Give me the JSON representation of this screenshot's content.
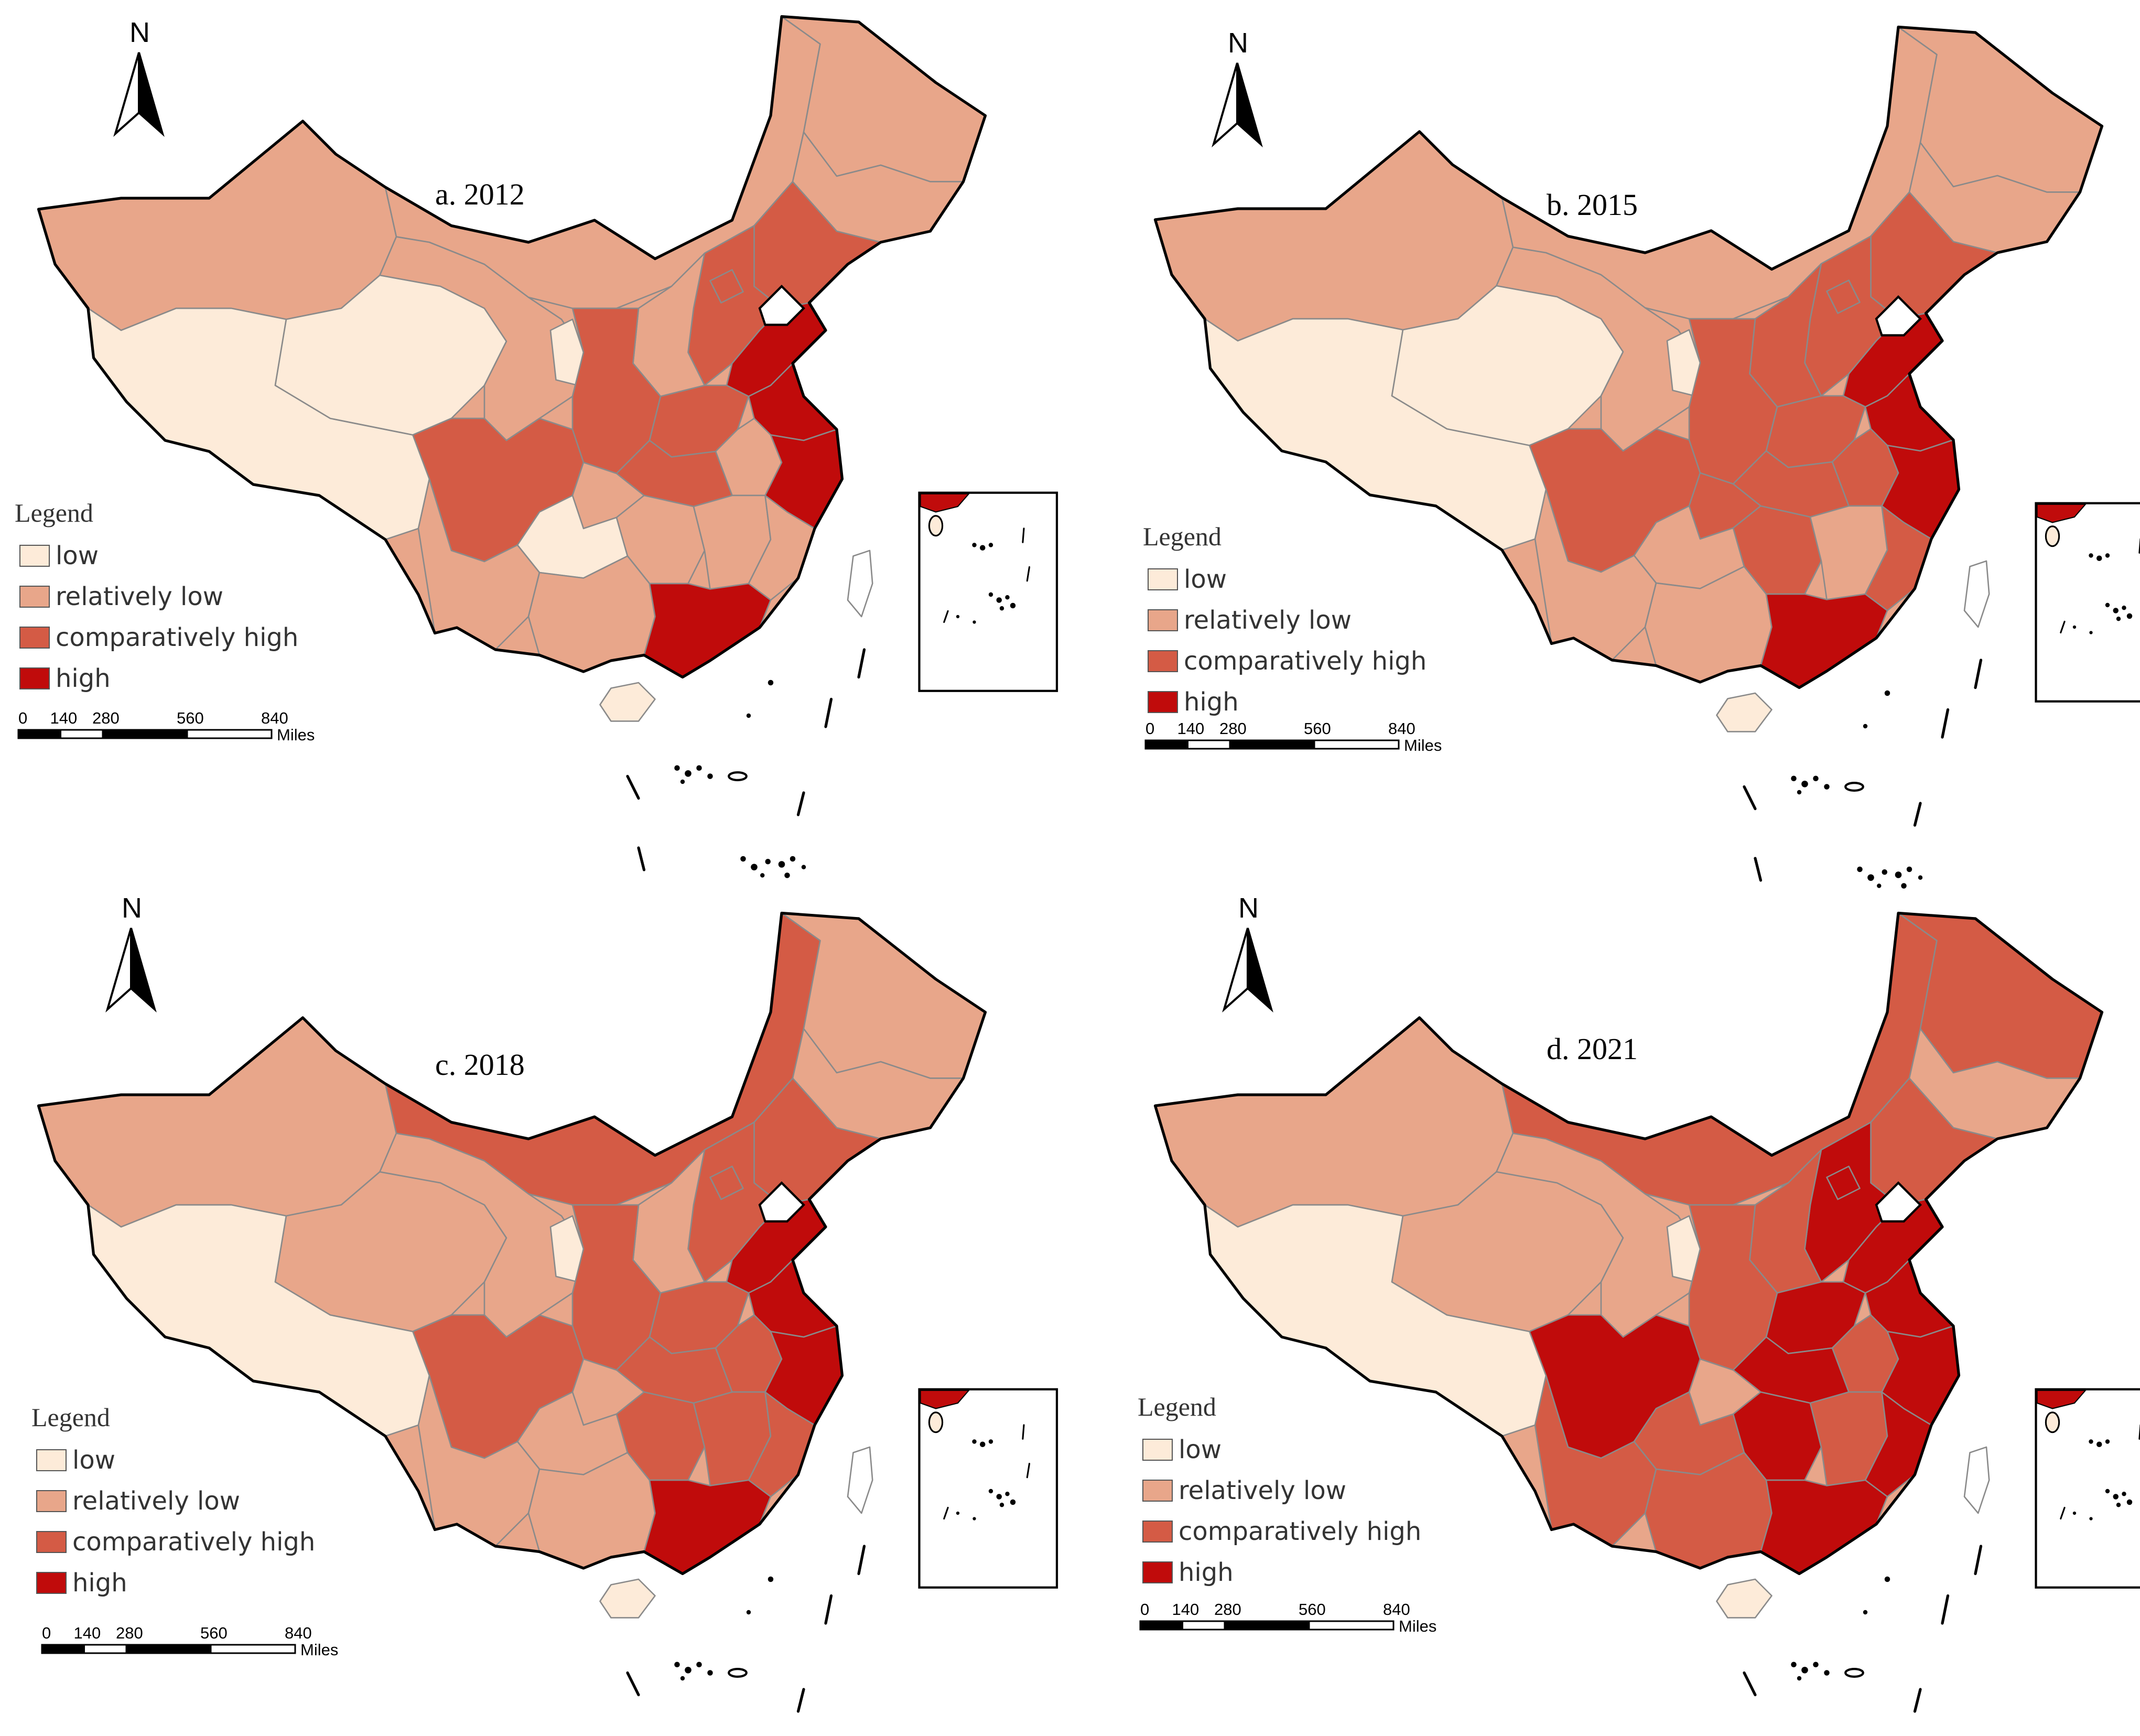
{
  "colors": {
    "low": "#fdebd9",
    "relatively_low": "#e8a68a",
    "comparatively_high": "#d45b45",
    "high": "#c00b0b",
    "outline": "#000000"
  },
  "legend": {
    "title": "Legend",
    "items": [
      {
        "key": "low",
        "label": "low"
      },
      {
        "key": "relatively_low",
        "label": "relatively low"
      },
      {
        "key": "comparatively_high",
        "label": "comparatively high"
      },
      {
        "key": "high",
        "label": "high"
      }
    ]
  },
  "north_arrow": {
    "label": "N",
    "icon": "north-arrow-icon"
  },
  "scale_bar": {
    "ticks": [
      "0",
      "140",
      "280",
      "560",
      "840"
    ],
    "unit": "Miles"
  },
  "panels": [
    {
      "id": "a",
      "title": "a. 2012",
      "regions": {
        "xinjiang": "relatively_low",
        "tibet": "low",
        "qinghai": "low",
        "gansu": "relatively_low",
        "inner_mongolia": "relatively_low",
        "ningxia": "low",
        "shaanxi": "comparatively_high",
        "shanxi": "relatively_low",
        "heilongjiang": "relatively_low",
        "jilin": "relatively_low",
        "liaoning": "comparatively_high",
        "beijing": "comparatively_high",
        "hebei": "comparatively_high",
        "shandong": "high",
        "henan": "comparatively_high",
        "jiangsu": "high",
        "anhui": "relatively_low",
        "zhejiang": "high",
        "hubei": "comparatively_high",
        "sichuan": "comparatively_high",
        "chongqing": "relatively_low",
        "yunnan": "relatively_low",
        "guizhou": "low",
        "hunan": "relatively_low",
        "jiangxi": "relatively_low",
        "fujian": "relatively_low",
        "guangxi": "relatively_low",
        "guangdong": "high",
        "hainan": "low",
        "taiwan": "none"
      }
    },
    {
      "id": "b",
      "title": "b. 2015",
      "regions": {
        "xinjiang": "relatively_low",
        "tibet": "low",
        "qinghai": "low",
        "gansu": "relatively_low",
        "inner_mongolia": "relatively_low",
        "ningxia": "low",
        "shaanxi": "comparatively_high",
        "shanxi": "comparatively_high",
        "heilongjiang": "relatively_low",
        "jilin": "relatively_low",
        "liaoning": "comparatively_high",
        "beijing": "comparatively_high",
        "hebei": "comparatively_high",
        "shandong": "high",
        "henan": "comparatively_high",
        "jiangsu": "high",
        "anhui": "comparatively_high",
        "zhejiang": "high",
        "hubei": "comparatively_high",
        "sichuan": "comparatively_high",
        "chongqing": "comparatively_high",
        "yunnan": "relatively_low",
        "guizhou": "relatively_low",
        "hunan": "comparatively_high",
        "jiangxi": "relatively_low",
        "fujian": "comparatively_high",
        "guangxi": "relatively_low",
        "guangdong": "high",
        "hainan": "low",
        "taiwan": "none"
      }
    },
    {
      "id": "c",
      "title": "c. 2018",
      "regions": {
        "xinjiang": "relatively_low",
        "tibet": "low",
        "qinghai": "relatively_low",
        "gansu": "relatively_low",
        "inner_mongolia": "comparatively_high",
        "ningxia": "low",
        "shaanxi": "comparatively_high",
        "shanxi": "relatively_low",
        "heilongjiang": "relatively_low",
        "jilin": "relatively_low",
        "liaoning": "comparatively_high",
        "beijing": "comparatively_high",
        "hebei": "comparatively_high",
        "shandong": "high",
        "henan": "comparatively_high",
        "jiangsu": "high",
        "anhui": "comparatively_high",
        "zhejiang": "high",
        "hubei": "comparatively_high",
        "sichuan": "comparatively_high",
        "chongqing": "relatively_low",
        "yunnan": "relatively_low",
        "guizhou": "relatively_low",
        "hunan": "comparatively_high",
        "jiangxi": "comparatively_high",
        "fujian": "comparatively_high",
        "guangxi": "relatively_low",
        "guangdong": "high",
        "hainan": "low",
        "taiwan": "none"
      }
    },
    {
      "id": "d",
      "title": "d. 2021",
      "regions": {
        "xinjiang": "relatively_low",
        "tibet": "low",
        "qinghai": "relatively_low",
        "gansu": "relatively_low",
        "inner_mongolia": "comparatively_high",
        "ningxia": "low",
        "shaanxi": "comparatively_high",
        "shanxi": "comparatively_high",
        "heilongjiang": "comparatively_high",
        "jilin": "relatively_low",
        "liaoning": "comparatively_high",
        "beijing": "high",
        "hebei": "high",
        "shandong": "high",
        "henan": "high",
        "jiangsu": "high",
        "anhui": "comparatively_high",
        "zhejiang": "high",
        "hubei": "high",
        "sichuan": "high",
        "chongqing": "relatively_low",
        "yunnan": "comparatively_high",
        "guizhou": "comparatively_high",
        "hunan": "high",
        "jiangxi": "comparatively_high",
        "fujian": "high",
        "guangxi": "comparatively_high",
        "guangdong": "high",
        "hainan": "low",
        "taiwan": "none"
      }
    }
  ]
}
